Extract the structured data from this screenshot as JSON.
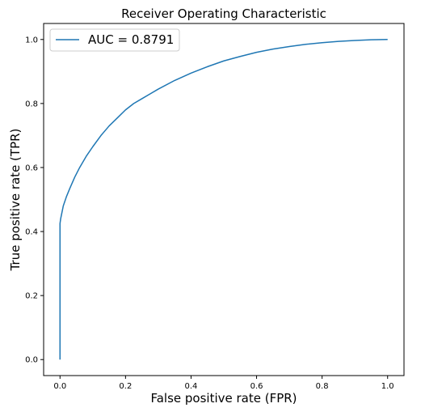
{
  "chart_data": {
    "type": "line",
    "title": "Receiver Operating Characteristic",
    "xlabel": "False positive rate (FPR)",
    "ylabel": "True positive rate (TPR)",
    "xlim": [
      -0.05,
      1.05
    ],
    "ylim": [
      -0.05,
      1.05
    ],
    "x_ticks": [
      0.0,
      0.2,
      0.4,
      0.6,
      0.8,
      1.0
    ],
    "x_tick_labels": [
      "0.0",
      "0.2",
      "0.4",
      "0.6",
      "0.8",
      "1.0"
    ],
    "y_ticks": [
      0.0,
      0.2,
      0.4,
      0.6,
      0.8,
      1.0
    ],
    "y_tick_labels": [
      "0.0",
      "0.2",
      "0.4",
      "0.6",
      "0.8",
      "1.0"
    ],
    "grid": false,
    "legend_position": "top-left",
    "series": [
      {
        "name": "AUC = 0.8791",
        "color": "#1f77b4",
        "x": [
          0.0,
          0.0,
          0.002,
          0.005,
          0.01,
          0.02,
          0.03,
          0.045,
          0.06,
          0.08,
          0.1,
          0.125,
          0.15,
          0.175,
          0.2,
          0.225,
          0.25,
          0.275,
          0.3,
          0.35,
          0.4,
          0.45,
          0.5,
          0.55,
          0.6,
          0.65,
          0.7,
          0.75,
          0.8,
          0.85,
          0.9,
          0.95,
          1.0
        ],
        "y": [
          0.0,
          0.425,
          0.44,
          0.455,
          0.48,
          0.51,
          0.535,
          0.57,
          0.6,
          0.635,
          0.665,
          0.7,
          0.73,
          0.755,
          0.78,
          0.8,
          0.815,
          0.83,
          0.845,
          0.872,
          0.895,
          0.915,
          0.933,
          0.947,
          0.96,
          0.97,
          0.978,
          0.985,
          0.99,
          0.994,
          0.997,
          0.999,
          1.0
        ]
      }
    ]
  }
}
